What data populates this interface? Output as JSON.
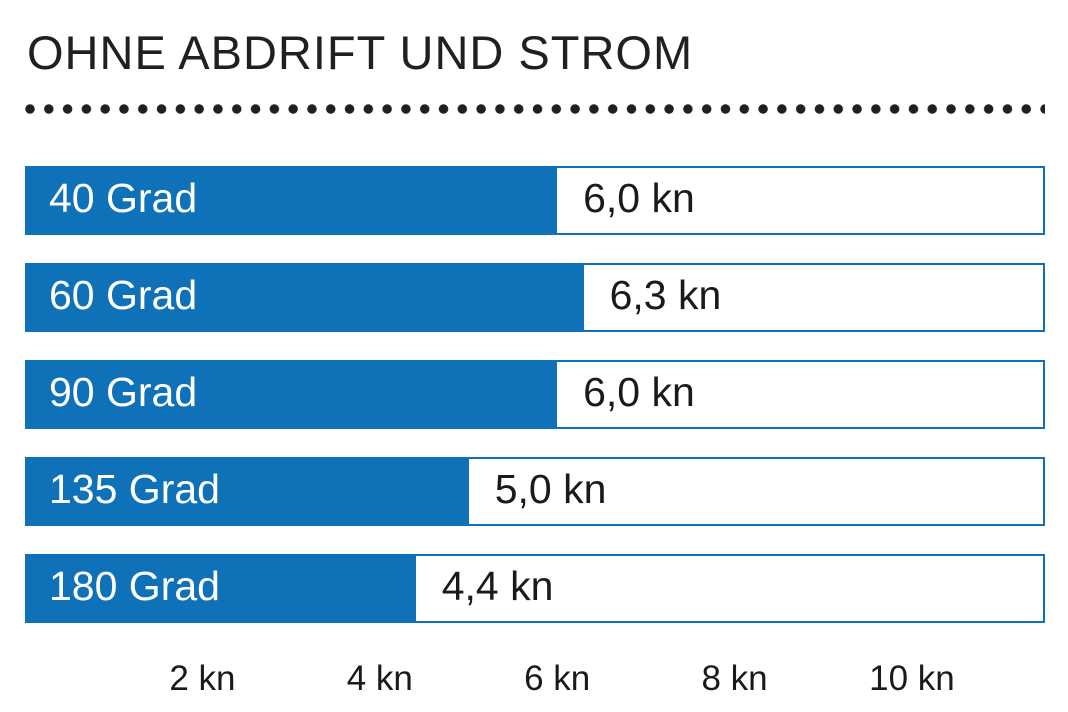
{
  "title": "OHNE ABDRIFT UND STROM",
  "accent_color": "#0f72b9",
  "chart_data": {
    "type": "bar",
    "orientation": "horizontal",
    "title": "OHNE ABDRIFT UND STROM",
    "categories": [
      "40 Grad",
      "60 Grad",
      "90 Grad",
      "135 Grad",
      "180 Grad"
    ],
    "values": [
      6.0,
      6.3,
      6.0,
      5.0,
      4.4
    ],
    "value_labels": [
      "6,0 kn",
      "6,3 kn",
      "6,0 kn",
      "5,0 kn",
      "4,4 kn"
    ],
    "unit": "kn",
    "xlabel": "",
    "ylabel": "",
    "xlim": [
      0,
      11.5
    ],
    "x_ticks": [
      {
        "value": 2,
        "label": "2 kn"
      },
      {
        "value": 4,
        "label": "4 kn"
      },
      {
        "value": 6,
        "label": "6 kn"
      },
      {
        "value": 8,
        "label": "8 kn"
      },
      {
        "value": 10,
        "label": "10 kn"
      }
    ],
    "grid": false,
    "legend": false,
    "bar_color": "#0f72b9",
    "bar_border_color": "#0f72b9",
    "category_label_position": "inside-left",
    "value_label_position": "right-of-bar"
  }
}
